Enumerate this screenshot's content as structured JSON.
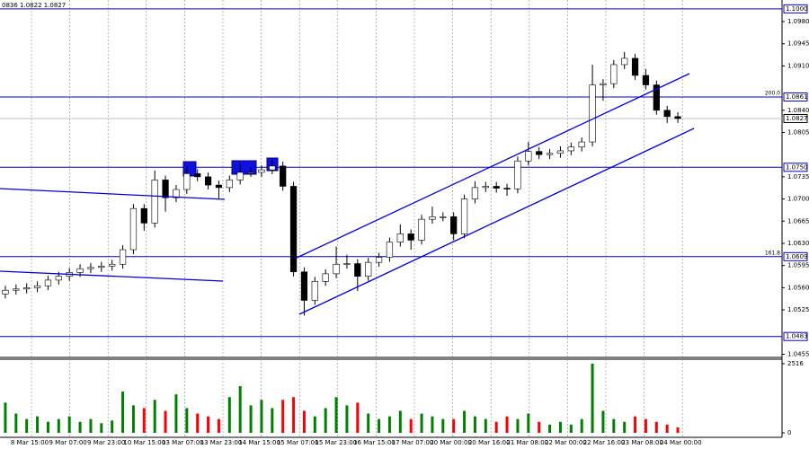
{
  "chart_data": [
    {
      "type": "candlestick",
      "title": "0836 1.0822 1.0827",
      "open": [
        1.055,
        1.0556,
        1.0558,
        1.056,
        1.0563,
        1.0572,
        1.0578,
        1.0584,
        1.059,
        1.0592,
        1.0594,
        1.0597,
        1.062,
        1.0685,
        1.0662,
        1.073,
        1.0702,
        1.0715,
        1.074,
        1.0735,
        1.0722,
        1.0718,
        1.073,
        1.0742,
        1.0742,
        1.0746,
        1.0752,
        1.072,
        1.0585,
        1.054,
        1.057,
        1.0582,
        1.0597,
        1.0598,
        1.0578,
        1.06,
        1.0608,
        1.0632,
        1.0645,
        1.0635,
        1.0668,
        1.0672,
        1.0672,
        1.0645,
        1.07,
        1.0718,
        1.072,
        1.0717,
        1.0716,
        1.076,
        1.0775,
        1.077,
        1.0772,
        1.0776,
        1.0782,
        1.079,
        1.088,
        1.0882,
        1.0912,
        1.0922,
        1.0895,
        1.088,
        1.084,
        1.083
      ],
      "high": [
        1.0563,
        1.0565,
        1.0567,
        1.057,
        1.0579,
        1.0585,
        1.0591,
        1.0597,
        1.0599,
        1.0601,
        1.0604,
        1.0627,
        1.0692,
        1.0692,
        1.0745,
        1.0737,
        1.0722,
        1.0752,
        1.0747,
        1.0742,
        1.0729,
        1.0737,
        1.0755,
        1.075,
        1.0753,
        1.0762,
        1.0759,
        1.0727,
        1.0592,
        1.0577,
        1.0589,
        1.0625,
        1.0612,
        1.0605,
        1.0607,
        1.0615,
        1.0639,
        1.066,
        1.0652,
        1.0675,
        1.0688,
        1.0679,
        1.0679,
        1.0707,
        1.0728,
        1.0727,
        1.0727,
        1.0724,
        1.0767,
        1.079,
        1.0782,
        1.0779,
        1.0783,
        1.0789,
        1.0797,
        1.0912,
        1.0889,
        1.0919,
        1.0932,
        1.0929,
        1.0905,
        1.0887,
        1.0847,
        1.0837
      ],
      "low": [
        1.0543,
        1.0549,
        1.0551,
        1.0553,
        1.0556,
        1.0565,
        1.0571,
        1.0577,
        1.0583,
        1.0585,
        1.0587,
        1.059,
        1.0613,
        1.065,
        1.0655,
        1.068,
        1.0695,
        1.0708,
        1.0728,
        1.0715,
        1.07,
        1.0711,
        1.0723,
        1.0735,
        1.0735,
        1.0739,
        1.0713,
        1.0578,
        1.0516,
        1.0533,
        1.0563,
        1.0575,
        1.059,
        1.0555,
        1.0571,
        1.0593,
        1.0601,
        1.0625,
        1.062,
        1.0628,
        1.0661,
        1.0665,
        1.0635,
        1.0638,
        1.0693,
        1.0711,
        1.071,
        1.0705,
        1.0709,
        1.0753,
        1.0763,
        1.0763,
        1.0765,
        1.0769,
        1.0775,
        1.0783,
        1.0855,
        1.0875,
        1.0905,
        1.0888,
        1.0873,
        1.0833,
        1.082,
        1.082
      ],
      "close": [
        1.0556,
        1.0558,
        1.056,
        1.0563,
        1.0572,
        1.0578,
        1.0584,
        1.059,
        1.0592,
        1.0594,
        1.0597,
        1.062,
        1.0685,
        1.0662,
        1.073,
        1.0702,
        1.0715,
        1.074,
        1.0735,
        1.0722,
        1.0718,
        1.073,
        1.0742,
        1.0742,
        1.0746,
        1.0752,
        1.072,
        1.0585,
        1.054,
        1.057,
        1.0582,
        1.0597,
        1.0598,
        1.0578,
        1.06,
        1.0608,
        1.0632,
        1.0645,
        1.0635,
        1.0668,
        1.0672,
        1.0672,
        1.0645,
        1.07,
        1.0718,
        1.072,
        1.0717,
        1.0716,
        1.076,
        1.0775,
        1.077,
        1.0772,
        1.0776,
        1.0782,
        1.079,
        1.088,
        1.0882,
        1.0912,
        1.0922,
        1.0895,
        1.088,
        1.084,
        1.083,
        1.0827
      ],
      "ylim": [
        1.045,
        1.1014
      ],
      "yticks": [
        {
          "value": 1.098,
          "label": "1.0980"
        },
        1.0945,
        {
          "value": 1.091,
          "label": "1.0910"
        },
        {
          "value": 1.084,
          "label": "1.0840"
        },
        1.0805,
        1.0735,
        {
          "value": 1.07,
          "label": "1.0700"
        },
        1.0665,
        {
          "value": 1.063,
          "label": "1.0630"
        },
        1.0595,
        {
          "value": 1.056,
          "label": "1.0560"
        },
        1.0525,
        1.0455
      ],
      "levels": [
        {
          "value": 1.1,
          "label": "1.1000"
        },
        {
          "value": 1.0861,
          "label": "1.0861",
          "fib": "200.0"
        },
        {
          "value": 1.075,
          "label": "1.0750"
        },
        {
          "value": 1.0609,
          "label": "1.0609",
          "fib": "161.8"
        },
        {
          "value": 1.0483,
          "label": "1.0483"
        }
      ],
      "current": {
        "value": 1.0827,
        "label": "1.0827"
      },
      "x_labels": [
        "8 Mar 15:00",
        "9 Mar 07:00",
        "9 Mar 23:00",
        "10 Mar 15:00",
        "13 Mar 07:00",
        "13 Mar 23:00",
        "14 Mar 15:00",
        "15 Mar 07:00",
        "15 Mar 23:00",
        "16 Mar 15:00",
        "17 Mar 07:00",
        "20 Mar 00:00",
        "20 Mar 16:00",
        "21 Mar 08:00",
        "22 Mar 00:00",
        "22 Mar 16:00",
        "23 Mar 08:00",
        "24 Mar 00:00"
      ],
      "up_color": "#ffffff",
      "down_color": "#000000",
      "level_color": "#0000cc",
      "current_color": "#c0c0c0"
    },
    {
      "type": "volume",
      "values": [
        1100,
        700,
        500,
        600,
        400,
        500,
        600,
        400,
        500,
        350,
        450,
        1500,
        1000,
        900,
        1200,
        800,
        1400,
        900,
        700,
        600,
        500,
        1300,
        1700,
        1000,
        1200,
        900,
        1200,
        1300,
        800,
        600,
        900,
        1300,
        1000,
        1100,
        700,
        500,
        600,
        800,
        500,
        700,
        600,
        500,
        500,
        800,
        600,
        500,
        400,
        600,
        500,
        700,
        400,
        300,
        400,
        300,
        500,
        2516,
        800,
        500,
        400,
        600,
        500,
        400,
        300,
        200
      ],
      "ylim": [
        0,
        2516
      ],
      "yticks": [
        2516,
        0
      ],
      "up_color": "#008000",
      "down_color": "#ff0000"
    }
  ]
}
